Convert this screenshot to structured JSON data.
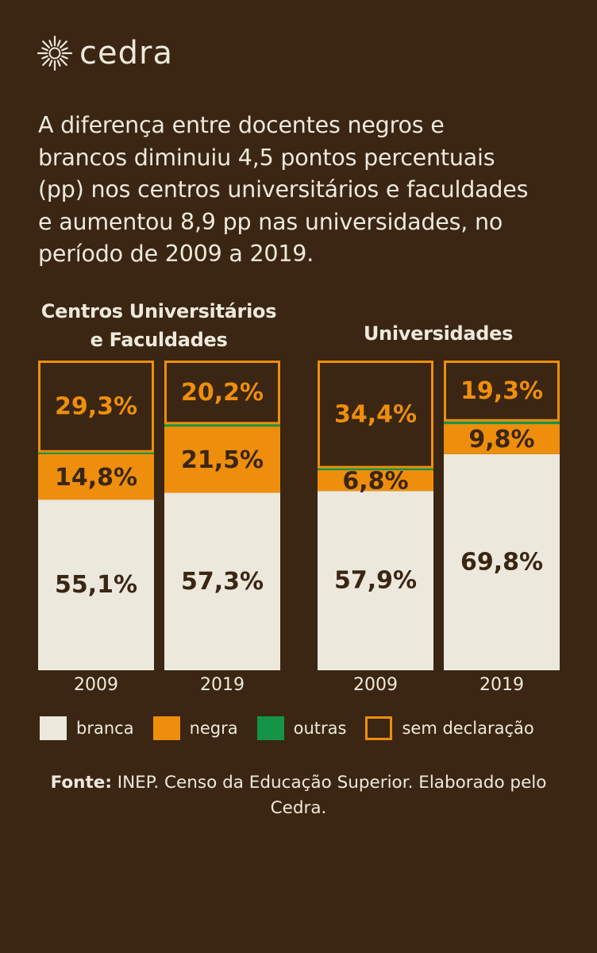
{
  "brand": {
    "name": "cedra",
    "icon": "sun-logo-icon"
  },
  "headline": "A diferença entre docentes negros e\nbrancos diminuiu 4,5 pontos percentuais\n(pp) nos centros universitários e faculdades\ne aumentou 8,9 pp nas universidades, no\nperíodo de 2009 a 2019.",
  "colors": {
    "background": "#3a2613",
    "branca": "#ece8dc",
    "negra": "#ee8e0c",
    "outras": "#159447",
    "sem_declaracao_border": "#ee8e0c",
    "label_dark": "#3a2613",
    "label_orange": "#ee8e0c"
  },
  "chart_data": {
    "type": "bar",
    "stacked": true,
    "unit": "%",
    "series_order": [
      "branca",
      "negra",
      "outras",
      "sem declaração"
    ],
    "groups": [
      {
        "title": "Centros Universitários\ne Faculdades",
        "bars": [
          {
            "year": "2009",
            "branca": 55.1,
            "negra": 14.8,
            "outras": 0.8,
            "sem_declaracao": 29.3,
            "labels": {
              "branca": "55,1%",
              "negra": "14,8%",
              "sem_declaracao": "29,3%"
            }
          },
          {
            "year": "2019",
            "branca": 57.3,
            "negra": 21.5,
            "outras": 1.0,
            "sem_declaracao": 20.2,
            "labels": {
              "branca": "57,3%",
              "negra": "21,5%",
              "sem_declaracao": "20,2%"
            }
          }
        ]
      },
      {
        "title": "Universidades",
        "bars": [
          {
            "year": "2009",
            "branca": 57.9,
            "negra": 6.8,
            "outras": 0.9,
            "sem_declaracao": 34.4,
            "labels": {
              "branca": "57,9%",
              "negra": "6,8%",
              "sem_declaracao": "34,4%"
            }
          },
          {
            "year": "2019",
            "branca": 69.8,
            "negra": 9.8,
            "outras": 1.1,
            "sem_declaracao": 19.3,
            "labels": {
              "branca": "69,8%",
              "negra": "9,8%",
              "sem_declaracao": "19,3%"
            }
          }
        ]
      }
    ],
    "ylim": [
      0,
      100
    ]
  },
  "legend": [
    {
      "key": "branca",
      "label": "branca"
    },
    {
      "key": "negra",
      "label": "negra"
    },
    {
      "key": "outras",
      "label": "outras"
    },
    {
      "key": "sem_declaracao",
      "label": "sem declaração"
    }
  ],
  "source": {
    "prefix": "Fonte:",
    "text": " INEP. Censo da Educação Superior. Elaborado pelo Cedra."
  }
}
